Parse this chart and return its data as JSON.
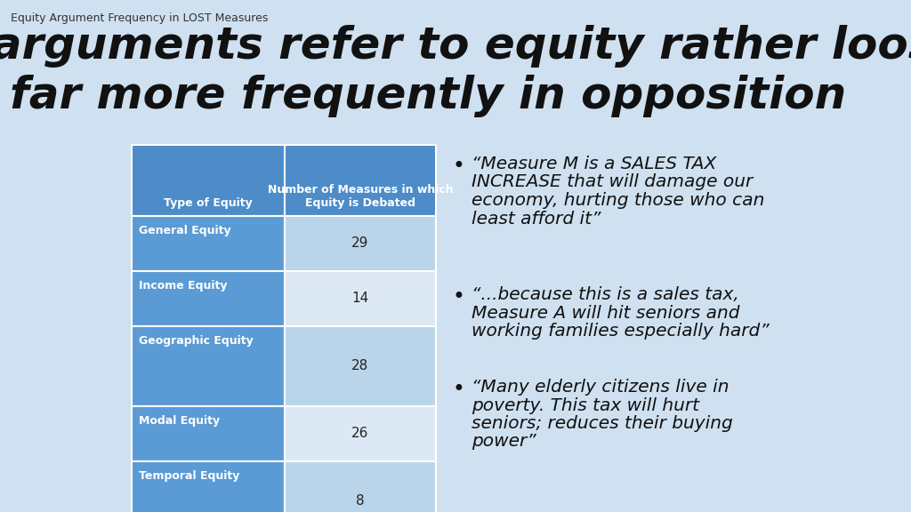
{
  "background_color": "#cfe0f0",
  "small_title": "Equity Argument Frequency in LOST Measures",
  "main_title_line1": "Ballot arguments refer to equity rather loosely;",
  "main_title_line2": "far more frequently in opposition",
  "table": {
    "header_col1": "Type of Equity",
    "header_col2": "Number of Measures in which\nEquity is Debated",
    "rows": [
      {
        "label": "General Equity",
        "value": "29"
      },
      {
        "label": "Income Equity",
        "value": "14"
      },
      {
        "label": "Geographic Equity",
        "value": "28"
      },
      {
        "label": "Modal Equity",
        "value": "26"
      },
      {
        "label": "Temporal Equity",
        "value": "8"
      }
    ],
    "header_bg": "#4d8cc8",
    "row_label_bg": "#5b9bd5",
    "row_odd_bg": "#bad5ea",
    "row_even_bg": "#dce8f4",
    "header_text_color": "#ffffff",
    "row_label_text_color": "#ffffff",
    "row_value_text_color": "#222222"
  },
  "bullets": [
    [
      "“Measure M is a SALES TAX",
      "INCREASE that will damage our",
      "economy, hurting those who can",
      "least afford it”"
    ],
    [
      "“...because this is a sales tax,",
      "Measure A will hit seniors and",
      "working families especially hard”"
    ],
    [
      "“Many elderly citizens live in",
      "poverty. This tax will hurt",
      "seniors; reduces their buying",
      "power”"
    ]
  ],
  "bullet_text_color": "#111111",
  "small_title_fontsize": 9,
  "main_title_fontsize": 36,
  "header_fontsize": 9,
  "row_label_fontsize": 9,
  "row_value_fontsize": 11,
  "bullet_fontsize": 14.5
}
